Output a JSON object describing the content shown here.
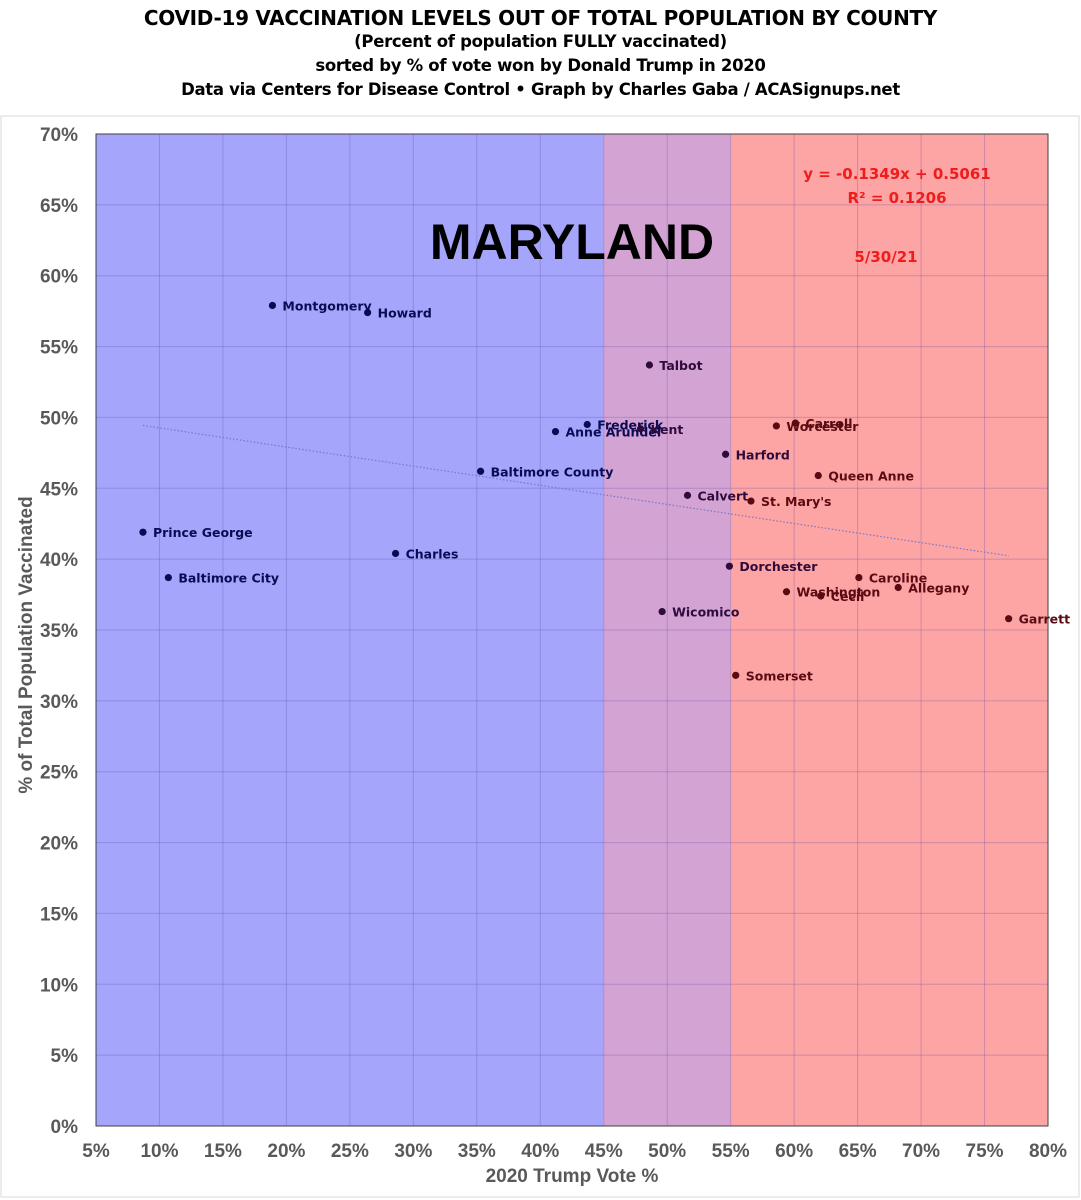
{
  "header": {
    "title": "COVID-19 VACCINATION LEVELS OUT OF TOTAL POPULATION BY COUNTY",
    "subtitle1": "(Percent of population FULLY vaccinated)",
    "subtitle2": "sorted by % of vote won by Donald Trump in 2020",
    "credit": "Data via Centers for Disease Control • Graph by Charles Gaba / ACASignups.net"
  },
  "colors": {
    "blue_zone": "#a5a5fb",
    "purple_zone": "#d3a3d3",
    "red_zone": "#fda4a4",
    "blue_point": "#0b0b55",
    "purple_point": "#2e0b3d",
    "red_point": "#5a0a12",
    "annotation": "#ee1c1c",
    "trendline": "#7777cc"
  },
  "chart_data": {
    "type": "scatter",
    "title": "MARYLAND",
    "xlabel": "2020 Trump Vote %",
    "ylabel": "% of Total Population Vaccinated",
    "xlim": [
      5,
      80
    ],
    "ylim": [
      0,
      70
    ],
    "x_ticks": [
      5,
      10,
      15,
      20,
      25,
      30,
      35,
      40,
      45,
      50,
      55,
      60,
      65,
      70,
      75,
      80
    ],
    "y_ticks": [
      0,
      5,
      10,
      15,
      20,
      25,
      30,
      35,
      40,
      45,
      50,
      55,
      60,
      65,
      70
    ],
    "x_tick_labels": [
      "5%",
      "10%",
      "15%",
      "20%",
      "25%",
      "30%",
      "35%",
      "40%",
      "45%",
      "50%",
      "55%",
      "60%",
      "65%",
      "70%",
      "75%",
      "80%"
    ],
    "y_tick_labels": [
      "0%",
      "5%",
      "10%",
      "15%",
      "20%",
      "25%",
      "30%",
      "35%",
      "40%",
      "45%",
      "50%",
      "55%",
      "60%",
      "65%",
      "70%"
    ],
    "grid": true,
    "zones": [
      {
        "name": "blue",
        "from": 5,
        "to": 45
      },
      {
        "name": "purple",
        "from": 45,
        "to": 55
      },
      {
        "name": "red",
        "from": 55,
        "to": 80
      }
    ],
    "trendline": {
      "equation": "y = -0.1349x + 0.5061",
      "r_squared": "R² = 0.1206",
      "slope": -0.1349,
      "intercept": 0.5061,
      "x_range": [
        8.7,
        76.9
      ]
    },
    "date": "5/30/21",
    "points": [
      {
        "name": "Prince George",
        "x": 8.7,
        "y": 41.9
      },
      {
        "name": "Baltimore City",
        "x": 10.7,
        "y": 38.7
      },
      {
        "name": "Montgomery",
        "x": 18.9,
        "y": 57.9
      },
      {
        "name": "Howard",
        "x": 26.4,
        "y": 57.4
      },
      {
        "name": "Charles",
        "x": 28.6,
        "y": 40.4
      },
      {
        "name": "Baltimore County",
        "x": 35.3,
        "y": 46.2
      },
      {
        "name": "Anne Arundel",
        "x": 41.2,
        "y": 49.0
      },
      {
        "name": "Frederick",
        "x": 43.7,
        "y": 49.5
      },
      {
        "name": "Kent",
        "x": 47.9,
        "y": 49.2
      },
      {
        "name": "Talbot",
        "x": 48.6,
        "y": 53.7
      },
      {
        "name": "Wicomico",
        "x": 49.6,
        "y": 36.3
      },
      {
        "name": "Calvert",
        "x": 51.6,
        "y": 44.5
      },
      {
        "name": "Harford",
        "x": 54.6,
        "y": 47.4
      },
      {
        "name": "Dorchester",
        "x": 54.9,
        "y": 39.5
      },
      {
        "name": "Somerset",
        "x": 55.4,
        "y": 31.8
      },
      {
        "name": "St. Mary's",
        "x": 56.6,
        "y": 44.1
      },
      {
        "name": "Worcester",
        "x": 58.6,
        "y": 49.4
      },
      {
        "name": "Carroll",
        "x": 60.1,
        "y": 49.6
      },
      {
        "name": "Washington",
        "x": 59.4,
        "y": 37.7
      },
      {
        "name": "Cecil",
        "x": 62.1,
        "y": 37.4
      },
      {
        "name": "Queen Anne",
        "x": 61.9,
        "y": 45.9
      },
      {
        "name": "Caroline",
        "x": 65.1,
        "y": 38.7
      },
      {
        "name": "Allegany",
        "x": 68.2,
        "y": 38.0
      },
      {
        "name": "Garrett",
        "x": 76.9,
        "y": 35.8
      }
    ]
  }
}
